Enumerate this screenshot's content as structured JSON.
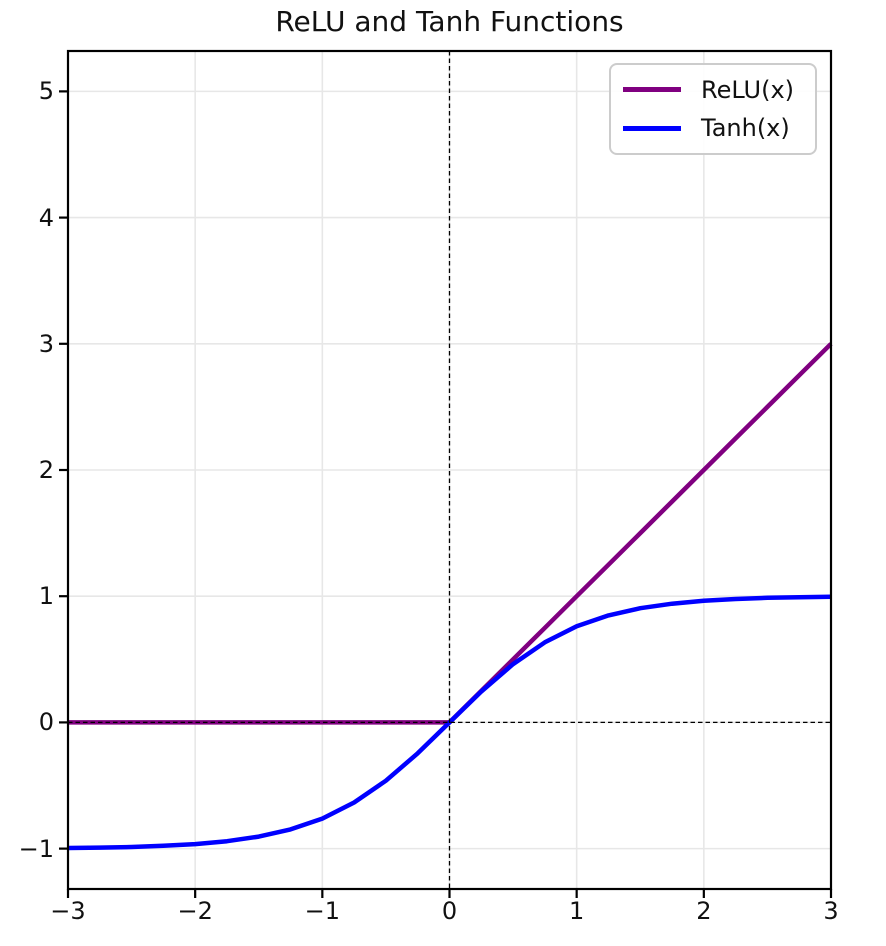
{
  "chart_data": {
    "type": "line",
    "title": "ReLU and Tanh Functions",
    "xlabel": "",
    "ylabel": "",
    "xlim": [
      -3,
      3
    ],
    "ylim": [
      -1.32,
      5.32
    ],
    "x_ticks": [
      -3,
      -2,
      -1,
      0,
      1,
      2,
      3
    ],
    "y_ticks": [
      -1,
      0,
      1,
      2,
      3,
      4,
      5
    ],
    "x_tick_labels": [
      "−3",
      "−2",
      "−1",
      "0",
      "1",
      "2",
      "3"
    ],
    "y_tick_labels": [
      "−1",
      "0",
      "1",
      "2",
      "3",
      "4",
      "5"
    ],
    "grid": true,
    "legend_position": "upper right",
    "x": [
      -3,
      -2.75,
      -2.5,
      -2.25,
      -2,
      -1.75,
      -1.5,
      -1.25,
      -1,
      -0.75,
      -0.5,
      -0.25,
      0,
      0.25,
      0.5,
      0.75,
      1,
      1.25,
      1.5,
      1.75,
      2,
      2.25,
      2.5,
      2.75,
      3
    ],
    "series": [
      {
        "name": "ReLU(x)",
        "color": "#800080",
        "linewidth": 4.5,
        "values": [
          0,
          0,
          0,
          0,
          0,
          0,
          0,
          0,
          0,
          0,
          0,
          0,
          0,
          0.25,
          0.5,
          0.75,
          1,
          1.25,
          1.5,
          1.75,
          2,
          2.25,
          2.5,
          2.75,
          3
        ]
      },
      {
        "name": "Tanh(x)",
        "color": "#0000ff",
        "linewidth": 4.5,
        "values": [
          -0.995,
          -0.992,
          -0.987,
          -0.978,
          -0.964,
          -0.941,
          -0.905,
          -0.848,
          -0.762,
          -0.635,
          -0.462,
          -0.245,
          0,
          0.245,
          0.462,
          0.635,
          0.762,
          0.848,
          0.905,
          0.941,
          0.964,
          0.978,
          0.987,
          0.992,
          0.995
        ]
      }
    ],
    "reference_lines": [
      {
        "orientation": "vertical",
        "x": 0,
        "color": "#000000",
        "style": "dashed"
      },
      {
        "orientation": "horizontal",
        "y": 0,
        "color": "#000000",
        "style": "dashed"
      }
    ]
  },
  "colors": {
    "background": "#ffffff",
    "grid": "#e7e7e7",
    "spine": "#000000",
    "tick": "#000000",
    "text": "#111111",
    "legend_border": "#cccccc"
  }
}
